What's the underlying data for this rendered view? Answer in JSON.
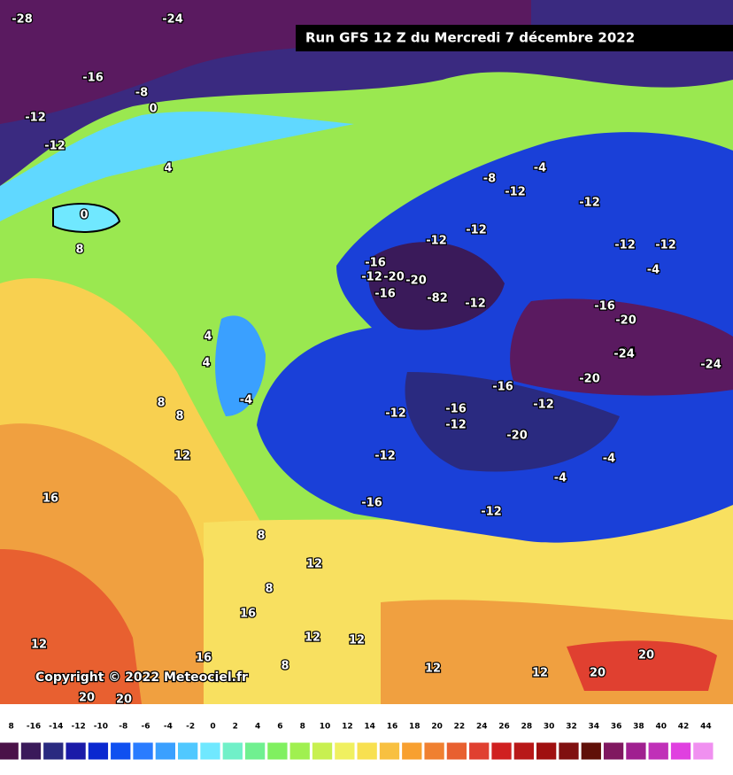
{
  "header": {
    "title": "Run GFS 12 Z du Mercredi 7 décembre 2022"
  },
  "copyright": "Copyright © 2022 Meteociel.fr",
  "map_labels": [
    "-28",
    "-24",
    "-16",
    "-8",
    "0",
    "-12",
    "-12",
    "4",
    "0",
    "8",
    "4",
    "4",
    "8",
    "8",
    "-4",
    "12",
    "16",
    "-16",
    "-12",
    "-20",
    "-16",
    "-20",
    "-82",
    "-12",
    "-12",
    "-12",
    "-8",
    "-12",
    "-4",
    "-12",
    "-12",
    "-12",
    "-16",
    "-20",
    "-24",
    "-24",
    "-20",
    "-16",
    "-12",
    "-12",
    "-16",
    "-12",
    "-20",
    "-12",
    "-4",
    "-4",
    "-16",
    "-12",
    "8",
    "8",
    "12",
    "16",
    "12",
    "12",
    "8",
    "16",
    "12",
    "20",
    "20",
    "20",
    "12",
    "12",
    "20",
    "-24",
    "-4"
  ],
  "legend": [
    {
      "label": "8",
      "color": "#4a1248"
    },
    {
      "label": "-16",
      "color": "#3a1a5a"
    },
    {
      "label": "-14",
      "color": "#2a2a80"
    },
    {
      "label": "-12",
      "color": "#1a1aa8"
    },
    {
      "label": "-10",
      "color": "#0a28d0"
    },
    {
      "label": "-8",
      "color": "#1050f0"
    },
    {
      "label": "-6",
      "color": "#2a7cff"
    },
    {
      "label": "-4",
      "color": "#3aa0ff"
    },
    {
      "label": "-2",
      "color": "#50c8ff"
    },
    {
      "label": "0",
      "color": "#70e8ff"
    },
    {
      "label": "2",
      "color": "#70f0c8"
    },
    {
      "label": "4",
      "color": "#70f090"
    },
    {
      "label": "6",
      "color": "#80f060"
    },
    {
      "label": "8",
      "color": "#a0f050"
    },
    {
      "label": "10",
      "color": "#c8f050"
    },
    {
      "label": "12",
      "color": "#f0f060"
    },
    {
      "label": "14",
      "color": "#f8e050"
    },
    {
      "label": "16",
      "color": "#f8c040"
    },
    {
      "label": "18",
      "color": "#f8a030"
    },
    {
      "label": "20",
      "color": "#f08030"
    },
    {
      "label": "22",
      "color": "#e86030"
    },
    {
      "label": "24",
      "color": "#e04030"
    },
    {
      "label": "26",
      "color": "#d02020"
    },
    {
      "label": "28",
      "color": "#b81818"
    },
    {
      "label": "30",
      "color": "#a01010"
    },
    {
      "label": "32",
      "color": "#801010"
    },
    {
      "label": "34",
      "color": "#601008"
    },
    {
      "label": "36",
      "color": "#801860"
    },
    {
      "label": "38",
      "color": "#a02090"
    },
    {
      "label": "40",
      "color": "#c030b8"
    },
    {
      "label": "42",
      "color": "#e040e0"
    },
    {
      "label": "44",
      "color": "#f090f0"
    }
  ]
}
